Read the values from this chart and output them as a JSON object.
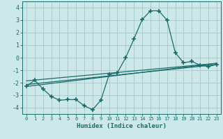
{
  "xlabel": "Humidex (Indice chaleur)",
  "bg_color": "#cce8e8",
  "grid_color": "#aacccc",
  "line_color": "#1a6b6b",
  "xlim": [
    -0.5,
    23.5
  ],
  "ylim": [
    -4.5,
    4.5
  ],
  "yticks": [
    -4,
    -3,
    -2,
    -1,
    0,
    1,
    2,
    3,
    4
  ],
  "xticks": [
    0,
    1,
    2,
    3,
    4,
    5,
    6,
    7,
    8,
    9,
    10,
    11,
    12,
    13,
    14,
    15,
    16,
    17,
    18,
    19,
    20,
    21,
    22,
    23
  ],
  "curve1_x": [
    0,
    1,
    2,
    3,
    4,
    5,
    6,
    7,
    8,
    9,
    10,
    11,
    12,
    13,
    14,
    15,
    16,
    17,
    18,
    19,
    20,
    21,
    22,
    23
  ],
  "curve1_y": [
    -2.3,
    -1.8,
    -2.5,
    -3.1,
    -3.4,
    -3.35,
    -3.35,
    -3.85,
    -4.15,
    -3.4,
    -1.35,
    -1.2,
    0.0,
    1.5,
    3.05,
    3.75,
    3.75,
    3.0,
    0.4,
    -0.4,
    -0.3,
    -0.6,
    -0.7,
    -0.55
  ],
  "line1_x": [
    0,
    23
  ],
  "line1_y": [
    -1.85,
    -0.45
  ],
  "line2_x": [
    0,
    23
  ],
  "line2_y": [
    -2.3,
    -0.45
  ],
  "line3_x": [
    0,
    23
  ],
  "line3_y": [
    -2.15,
    -0.55
  ]
}
